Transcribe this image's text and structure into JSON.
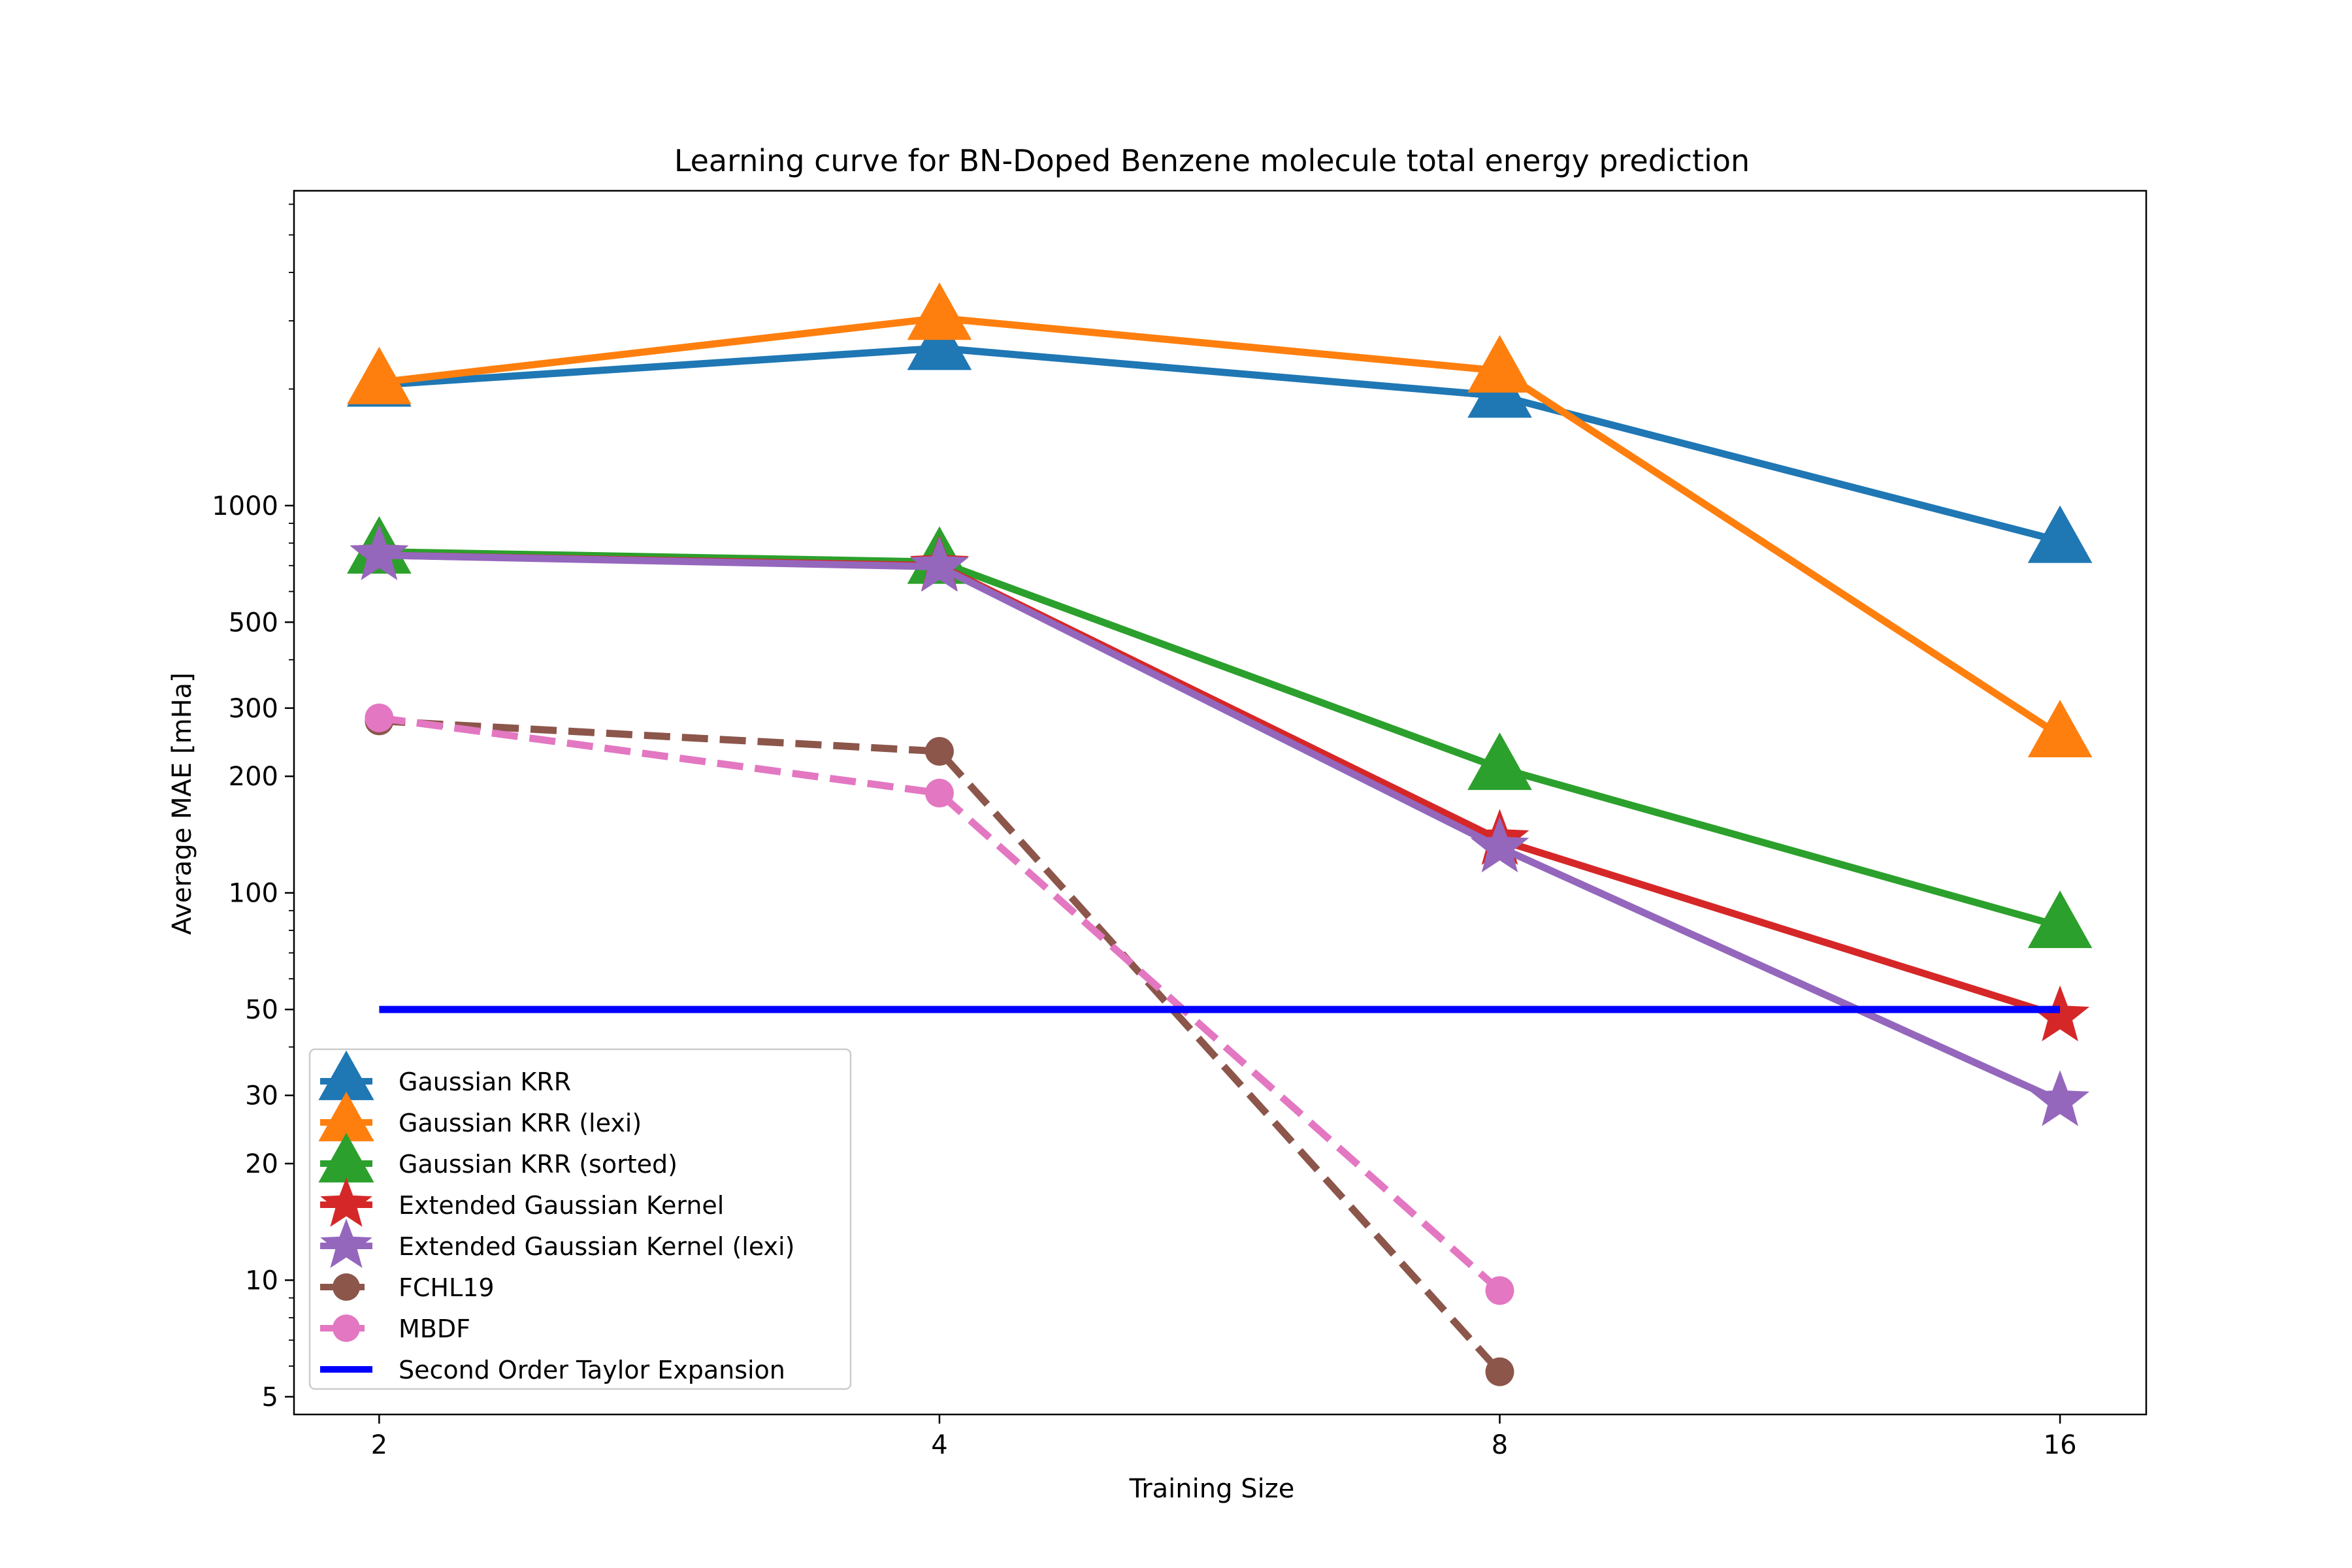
{
  "chart_data": {
    "type": "line",
    "title": "Learning curve for BN-Doped Benzene molecule total energy prediction",
    "xlabel": "Training Size",
    "ylabel": "Average MAE [mHa]",
    "x_scale": "log2",
    "y_scale": "log10",
    "x": [
      2,
      4,
      8,
      16
    ],
    "x_tick_labels": [
      "2",
      "4",
      "8",
      "16"
    ],
    "xlim": [
      1.8,
      17.8
    ],
    "ylim": [
      4.5,
      6500
    ],
    "y_ticks": [
      5,
      10,
      20,
      30,
      50,
      100,
      200,
      300,
      500,
      1000
    ],
    "y_tick_labels": [
      "5",
      "10",
      "20",
      "30",
      "50",
      "100",
      "200",
      "300",
      "500",
      "1000"
    ],
    "grid": false,
    "legend_position": "lower-left",
    "series": [
      {
        "name": "Gaussian KRR",
        "values": [
          2050,
          2550,
          1920,
          810
        ],
        "color": "#1f77b4",
        "marker": "triangle",
        "dash": false
      },
      {
        "name": "Gaussian KRR (lexi)",
        "values": [
          2080,
          3050,
          2230,
          255
        ],
        "color": "#ff7f0e",
        "marker": "triangle",
        "dash": false
      },
      {
        "name": "Gaussian KRR (sorted)",
        "values": [
          760,
          715,
          210,
          82
        ],
        "color": "#2ca02c",
        "marker": "triangle",
        "dash": false
      },
      {
        "name": "Extended Gaussian Kernel",
        "values": [
          745,
          700,
          137,
          48
        ],
        "color": "#d62728",
        "marker": "star",
        "dash": false
      },
      {
        "name": "Extended Gaussian Kernel (lexi)",
        "values": [
          745,
          695,
          131,
          29
        ],
        "color": "#9467bd",
        "marker": "star",
        "dash": false
      },
      {
        "name": "FCHL19",
        "values": [
          278,
          232,
          5.8,
          null
        ],
        "color": "#8c564b",
        "marker": "circle",
        "dash": true
      },
      {
        "name": "MBDF",
        "values": [
          283,
          181,
          9.4,
          null
        ],
        "color": "#e377c2",
        "marker": "circle",
        "dash": true
      },
      {
        "name": "Second Order Taylor Expansion",
        "values": [
          50,
          50,
          50,
          50
        ],
        "color": "#0000ff",
        "marker": "none",
        "dash": false
      }
    ]
  }
}
